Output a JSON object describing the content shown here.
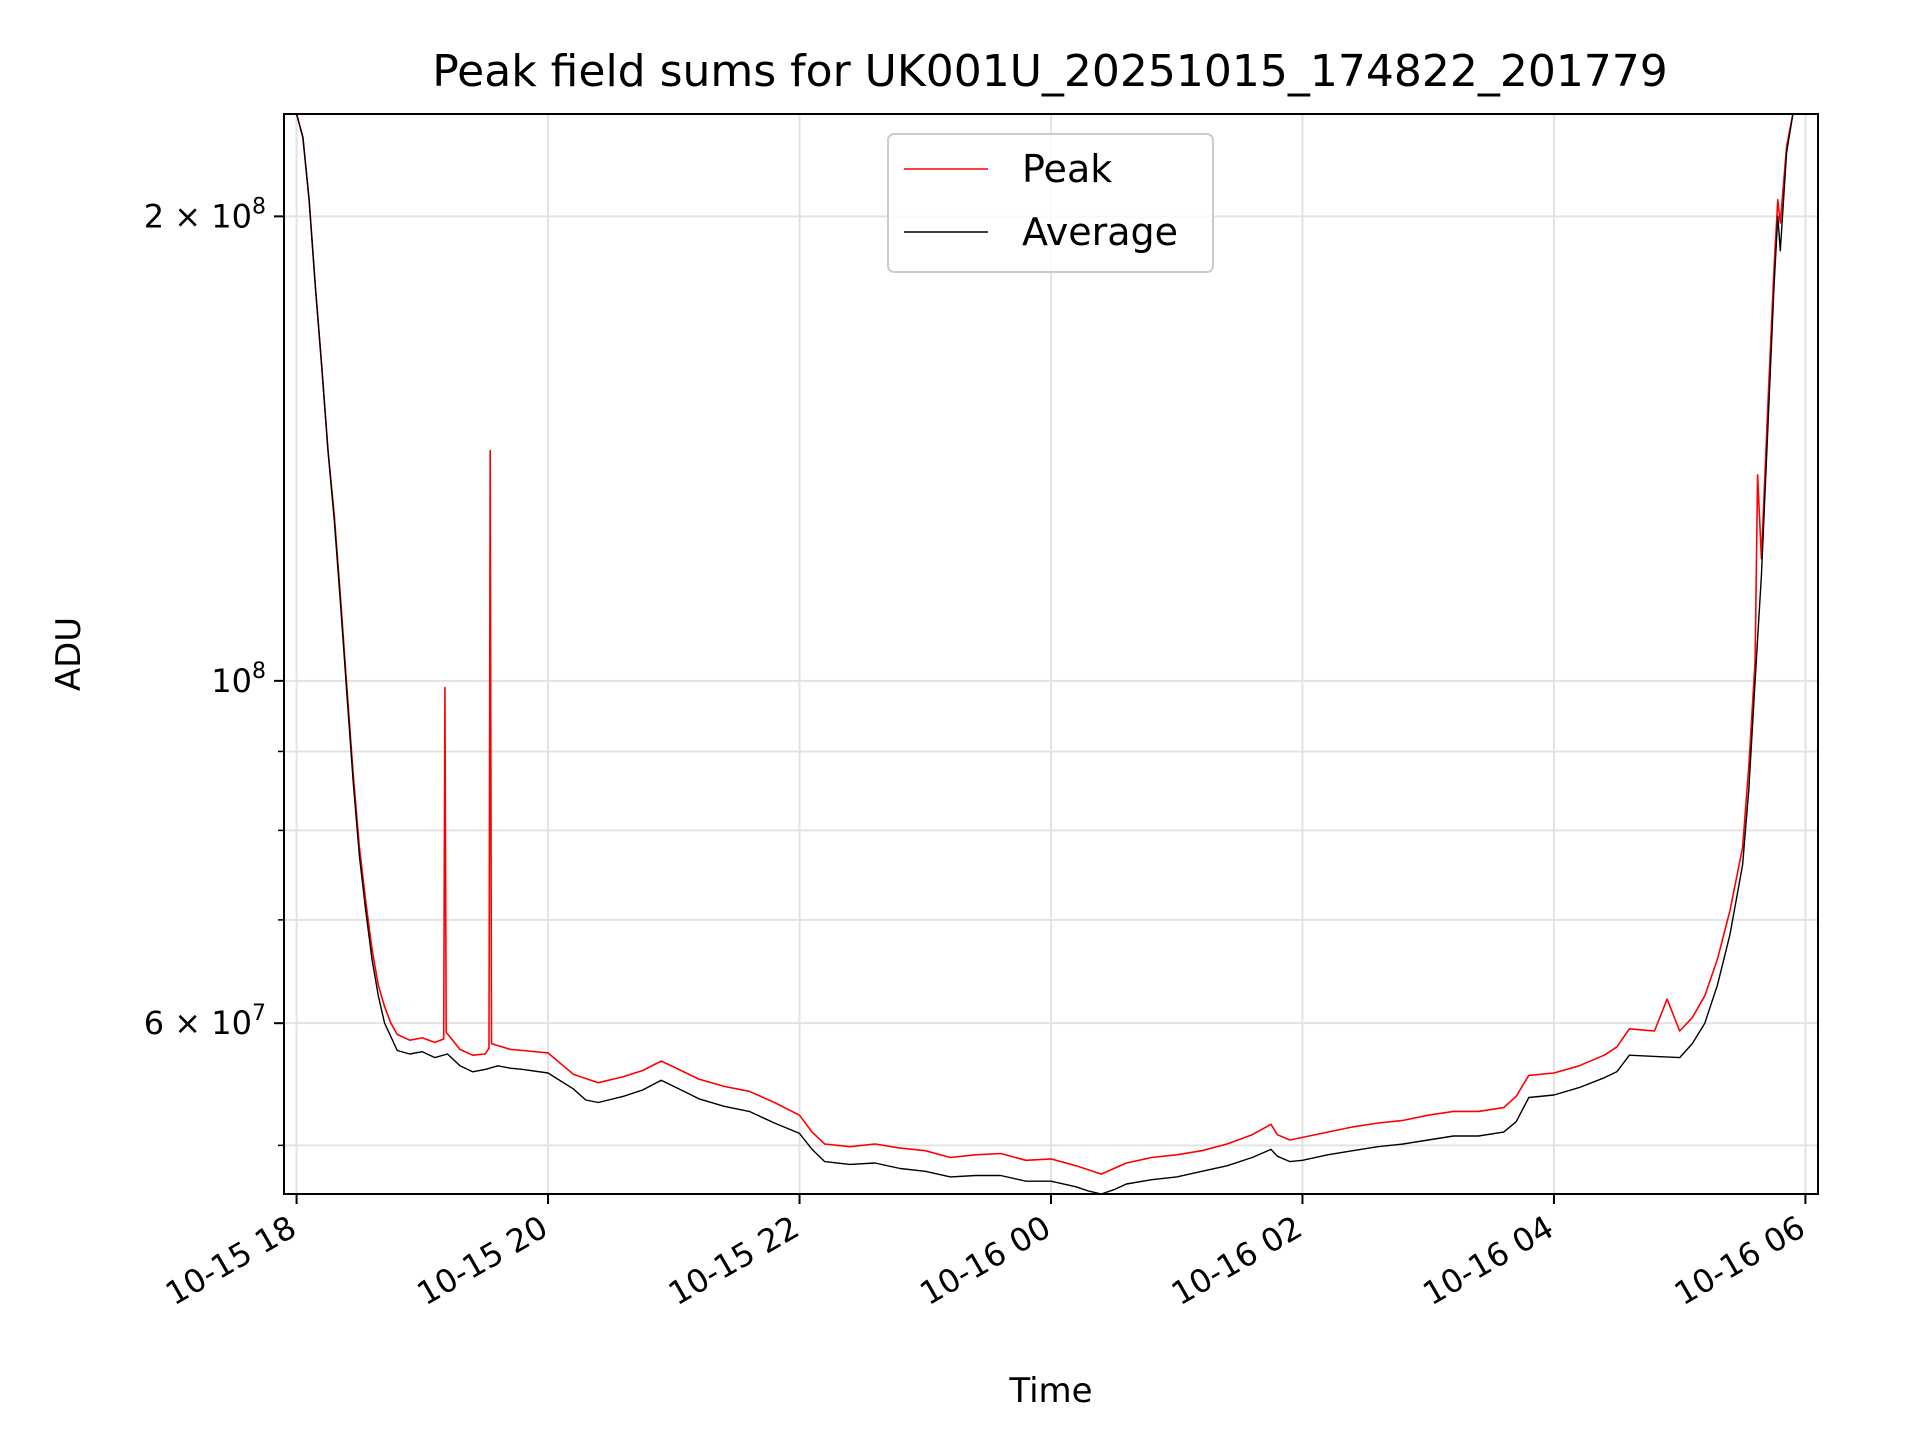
{
  "chart_data": {
    "type": "line",
    "title": "Peak field sums for UK001U_20251015_174822_201779",
    "xlabel": "Time",
    "ylabel": "ADU",
    "yscale": "log",
    "ylim": [
      46500000,
      233000000
    ],
    "xlim_hours": [
      -0.1,
      12.1
    ],
    "grid": true,
    "legend_position": "top-center",
    "x_tick_hours": [
      0,
      2,
      4,
      6,
      8,
      10,
      12
    ],
    "x_tick_labels": [
      "10-15 18",
      "10-15 20",
      "10-15 22",
      "10-16 00",
      "10-16 02",
      "10-16 04",
      "10-16 06"
    ],
    "y_major_ticks": [
      {
        "value": 200000000,
        "mant": "2",
        "exp": "8"
      },
      {
        "value": 100000000,
        "mant": "",
        "exp": "8"
      },
      {
        "value": 60000000,
        "mant": "6",
        "exp": "7"
      }
    ],
    "y_minor_ticks": [
      50000000,
      70000000,
      80000000,
      90000000
    ],
    "series": [
      {
        "name": "Peak",
        "color": "#ff0000",
        "points": [
          [
            -0.1,
            233000000
          ],
          [
            0.0,
            233000000
          ],
          [
            0.05,
            225000000
          ],
          [
            0.1,
            205000000
          ],
          [
            0.15,
            180000000
          ],
          [
            0.2,
            160000000
          ],
          [
            0.25,
            141000000
          ],
          [
            0.3,
            128000000
          ],
          [
            0.35,
            113000000
          ],
          [
            0.4,
            99000000
          ],
          [
            0.45,
            87000000
          ],
          [
            0.5,
            78000000
          ],
          [
            0.55,
            72000000
          ],
          [
            0.6,
            67000000
          ],
          [
            0.65,
            63500000
          ],
          [
            0.7,
            61500000
          ],
          [
            0.75,
            60000000
          ],
          [
            0.8,
            59000000
          ],
          [
            0.9,
            58500000
          ],
          [
            1.0,
            58700000
          ],
          [
            1.1,
            58300000
          ],
          [
            1.17,
            58600000
          ],
          [
            1.18,
            99000000
          ],
          [
            1.19,
            59200000
          ],
          [
            1.3,
            57700000
          ],
          [
            1.4,
            57200000
          ],
          [
            1.5,
            57300000
          ],
          [
            1.53,
            57800000
          ],
          [
            1.54,
            141000000
          ],
          [
            1.55,
            58200000
          ],
          [
            1.7,
            57700000
          ],
          [
            1.8,
            57600000
          ],
          [
            2.0,
            57400000
          ],
          [
            2.2,
            55600000
          ],
          [
            2.4,
            54900000
          ],
          [
            2.6,
            55400000
          ],
          [
            2.75,
            55900000
          ],
          [
            2.9,
            56700000
          ],
          [
            3.0,
            56200000
          ],
          [
            3.2,
            55200000
          ],
          [
            3.4,
            54600000
          ],
          [
            3.6,
            54200000
          ],
          [
            3.8,
            53300000
          ],
          [
            4.0,
            52300000
          ],
          [
            4.1,
            51000000
          ],
          [
            4.2,
            50100000
          ],
          [
            4.4,
            49900000
          ],
          [
            4.6,
            50100000
          ],
          [
            4.8,
            49800000
          ],
          [
            5.0,
            49600000
          ],
          [
            5.2,
            49100000
          ],
          [
            5.4,
            49300000
          ],
          [
            5.6,
            49400000
          ],
          [
            5.8,
            48900000
          ],
          [
            6.0,
            49000000
          ],
          [
            6.2,
            48500000
          ],
          [
            6.3,
            48200000
          ],
          [
            6.4,
            47900000
          ],
          [
            6.5,
            48300000
          ],
          [
            6.6,
            48700000
          ],
          [
            6.8,
            49100000
          ],
          [
            7.0,
            49300000
          ],
          [
            7.2,
            49600000
          ],
          [
            7.4,
            50100000
          ],
          [
            7.6,
            50800000
          ],
          [
            7.75,
            51600000
          ],
          [
            7.8,
            50800000
          ],
          [
            7.9,
            50400000
          ],
          [
            8.0,
            50600000
          ],
          [
            8.2,
            51000000
          ],
          [
            8.4,
            51400000
          ],
          [
            8.6,
            51700000
          ],
          [
            8.8,
            51900000
          ],
          [
            9.0,
            52300000
          ],
          [
            9.2,
            52600000
          ],
          [
            9.4,
            52600000
          ],
          [
            9.6,
            52900000
          ],
          [
            9.7,
            53800000
          ],
          [
            9.8,
            55500000
          ],
          [
            10.0,
            55700000
          ],
          [
            10.2,
            56300000
          ],
          [
            10.4,
            57200000
          ],
          [
            10.5,
            57900000
          ],
          [
            10.6,
            59500000
          ],
          [
            10.8,
            59300000
          ],
          [
            10.9,
            62200000
          ],
          [
            11.0,
            59300000
          ],
          [
            11.1,
            60500000
          ],
          [
            11.2,
            62500000
          ],
          [
            11.3,
            66000000
          ],
          [
            11.4,
            71000000
          ],
          [
            11.5,
            78000000
          ],
          [
            11.55,
            88000000
          ],
          [
            11.6,
            103000000
          ],
          [
            11.62,
            136000000
          ],
          [
            11.65,
            120000000
          ],
          [
            11.7,
            150000000
          ],
          [
            11.75,
            185000000
          ],
          [
            11.78,
            205000000
          ],
          [
            11.8,
            198000000
          ],
          [
            11.85,
            222000000
          ],
          [
            11.9,
            233000000
          ],
          [
            12.1,
            233000000
          ]
        ]
      },
      {
        "name": "Average",
        "color": "#000000",
        "points": [
          [
            -0.1,
            233000000
          ],
          [
            0.0,
            233000000
          ],
          [
            0.05,
            225000000
          ],
          [
            0.1,
            205000000
          ],
          [
            0.15,
            180000000
          ],
          [
            0.2,
            160000000
          ],
          [
            0.25,
            141000000
          ],
          [
            0.3,
            127000000
          ],
          [
            0.35,
            112000000
          ],
          [
            0.4,
            98000000
          ],
          [
            0.45,
            86000000
          ],
          [
            0.5,
            77000000
          ],
          [
            0.55,
            71000000
          ],
          [
            0.6,
            66000000
          ],
          [
            0.65,
            62500000
          ],
          [
            0.7,
            60000000
          ],
          [
            0.75,
            58800000
          ],
          [
            0.8,
            57600000
          ],
          [
            0.9,
            57300000
          ],
          [
            1.0,
            57500000
          ],
          [
            1.1,
            57000000
          ],
          [
            1.2,
            57300000
          ],
          [
            1.3,
            56300000
          ],
          [
            1.4,
            55800000
          ],
          [
            1.5,
            56000000
          ],
          [
            1.6,
            56300000
          ],
          [
            1.7,
            56100000
          ],
          [
            1.8,
            56000000
          ],
          [
            2.0,
            55700000
          ],
          [
            2.2,
            54400000
          ],
          [
            2.3,
            53500000
          ],
          [
            2.4,
            53300000
          ],
          [
            2.6,
            53800000
          ],
          [
            2.75,
            54300000
          ],
          [
            2.9,
            55100000
          ],
          [
            3.0,
            54600000
          ],
          [
            3.2,
            53600000
          ],
          [
            3.4,
            53000000
          ],
          [
            3.6,
            52600000
          ],
          [
            3.8,
            51700000
          ],
          [
            4.0,
            50900000
          ],
          [
            4.1,
            49700000
          ],
          [
            4.2,
            48800000
          ],
          [
            4.4,
            48600000
          ],
          [
            4.6,
            48700000
          ],
          [
            4.8,
            48300000
          ],
          [
            5.0,
            48100000
          ],
          [
            5.2,
            47700000
          ],
          [
            5.4,
            47800000
          ],
          [
            5.6,
            47800000
          ],
          [
            5.8,
            47400000
          ],
          [
            6.0,
            47400000
          ],
          [
            6.2,
            47000000
          ],
          [
            6.3,
            46700000
          ],
          [
            6.4,
            46500000
          ],
          [
            6.5,
            46800000
          ],
          [
            6.6,
            47200000
          ],
          [
            6.8,
            47500000
          ],
          [
            7.0,
            47700000
          ],
          [
            7.2,
            48100000
          ],
          [
            7.4,
            48500000
          ],
          [
            7.6,
            49100000
          ],
          [
            7.75,
            49700000
          ],
          [
            7.8,
            49200000
          ],
          [
            7.9,
            48800000
          ],
          [
            8.0,
            48900000
          ],
          [
            8.2,
            49300000
          ],
          [
            8.4,
            49600000
          ],
          [
            8.6,
            49900000
          ],
          [
            8.8,
            50100000
          ],
          [
            9.0,
            50400000
          ],
          [
            9.2,
            50700000
          ],
          [
            9.4,
            50700000
          ],
          [
            9.6,
            51000000
          ],
          [
            9.7,
            51800000
          ],
          [
            9.8,
            53700000
          ],
          [
            10.0,
            53900000
          ],
          [
            10.2,
            54500000
          ],
          [
            10.4,
            55300000
          ],
          [
            10.5,
            55800000
          ],
          [
            10.6,
            57200000
          ],
          [
            10.8,
            57100000
          ],
          [
            11.0,
            57000000
          ],
          [
            11.1,
            58200000
          ],
          [
            11.2,
            60000000
          ],
          [
            11.3,
            63500000
          ],
          [
            11.4,
            68500000
          ],
          [
            11.5,
            76000000
          ],
          [
            11.55,
            85000000
          ],
          [
            11.6,
            100000000
          ],
          [
            11.65,
            117000000
          ],
          [
            11.7,
            145000000
          ],
          [
            11.75,
            180000000
          ],
          [
            11.78,
            200000000
          ],
          [
            11.8,
            190000000
          ],
          [
            11.85,
            220000000
          ],
          [
            11.9,
            233000000
          ],
          [
            12.1,
            233000000
          ]
        ]
      }
    ]
  }
}
